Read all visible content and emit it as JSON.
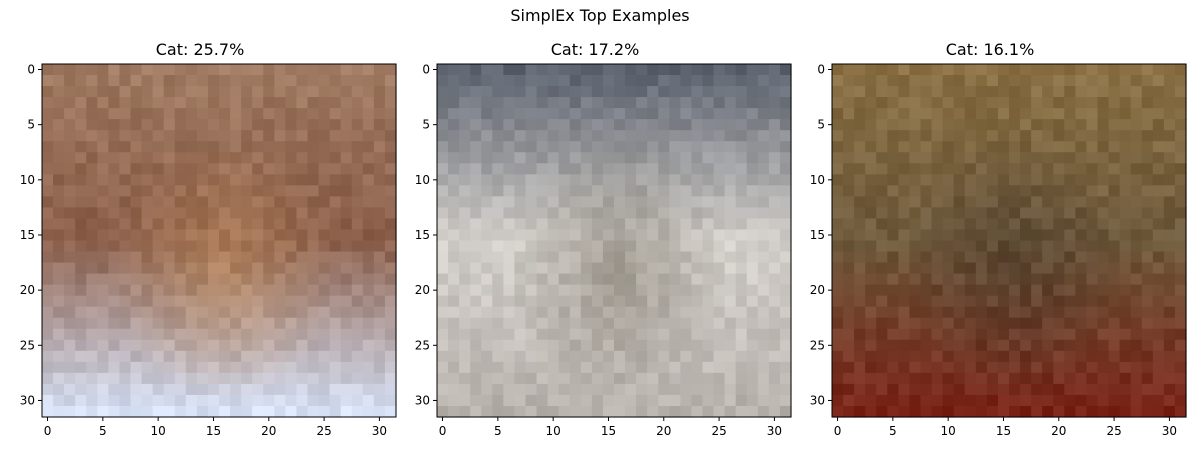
{
  "figure": {
    "title": "SimplEx Top Examples"
  },
  "chart_data": [
    {
      "type": "heatmap",
      "title": "Cat: 25.7%",
      "xlabel": "",
      "ylabel": "",
      "xlim": [
        -0.5,
        31.5
      ],
      "ylim": [
        31.5,
        -0.5
      ],
      "xticks": [
        0,
        5,
        10,
        15,
        20,
        25,
        30
      ],
      "yticks": [
        0,
        5,
        10,
        15,
        20,
        25,
        30
      ],
      "palette": {
        "top": "#a07a62",
        "mid": "#8b5e49",
        "bottom": "#d6e1f6",
        "accent": "#c7925f"
      }
    },
    {
      "type": "heatmap",
      "title": "Cat: 17.2%",
      "xlabel": "",
      "ylabel": "",
      "xlim": [
        -0.5,
        31.5
      ],
      "ylim": [
        31.5,
        -0.5
      ],
      "xticks": [
        0,
        5,
        10,
        15,
        20,
        25,
        30
      ],
      "yticks": [
        0,
        5,
        10,
        15,
        20,
        25,
        30
      ],
      "palette": {
        "top": "#5d6470",
        "mid": "#d4d0cb",
        "bottom": "#b8b2ad",
        "accent": "#7c7567"
      }
    },
    {
      "type": "heatmap",
      "title": "Cat: 16.1%",
      "xlabel": "",
      "ylabel": "",
      "xlim": [
        -0.5,
        31.5
      ],
      "ylim": [
        31.5,
        -0.5
      ],
      "xticks": [
        0,
        5,
        10,
        15,
        20,
        25,
        30
      ],
      "yticks": [
        0,
        5,
        10,
        15,
        20,
        25,
        30
      ],
      "palette": {
        "top": "#8a7044",
        "mid": "#6e5a3c",
        "bottom": "#7a2418",
        "accent": "#4b3b2c"
      }
    }
  ]
}
